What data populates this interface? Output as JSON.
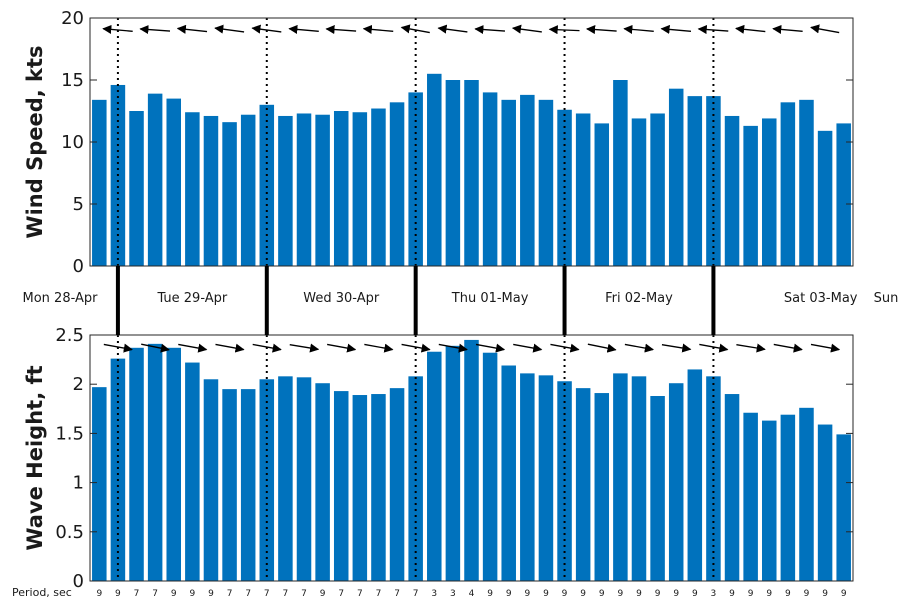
{
  "chart_data": [
    {
      "type": "bar",
      "ylabel": "Wind Speed, kts",
      "ylim": [
        0,
        20
      ],
      "yticks": [
        0,
        5,
        10,
        15,
        20
      ],
      "color": "#0072BD",
      "values": [
        13.4,
        14.6,
        12.5,
        13.9,
        13.5,
        12.4,
        12.1,
        11.6,
        12.2,
        13.0,
        12.1,
        12.3,
        12.2,
        12.5,
        12.4,
        12.7,
        13.2,
        14.0,
        15.5,
        15.0,
        15.0,
        14.0,
        13.4,
        13.8,
        13.4,
        12.6,
        12.3,
        11.5,
        15.0,
        11.9,
        12.3,
        14.3,
        13.7,
        13.7,
        12.1,
        11.3,
        11.9,
        13.2,
        13.4,
        10.9,
        11.5
      ],
      "direction_arrows": "wind direction arrows along top of panel"
    },
    {
      "type": "bar",
      "ylabel": "Wave Height, ft",
      "ylim": [
        0,
        2.5
      ],
      "yticks": [
        "0",
        "0.5",
        "1",
        "1.5",
        "2",
        "2.5"
      ],
      "color": "#0072BD",
      "values": [
        1.97,
        2.26,
        2.37,
        2.41,
        2.37,
        2.22,
        2.05,
        1.95,
        1.95,
        2.05,
        2.08,
        2.07,
        2.01,
        1.93,
        1.89,
        1.9,
        1.96,
        2.08,
        2.33,
        2.39,
        2.45,
        2.32,
        2.19,
        2.11,
        2.09,
        2.03,
        1.96,
        1.91,
        2.11,
        2.08,
        1.88,
        2.01,
        2.15,
        2.08,
        1.9,
        1.71,
        1.63,
        1.69,
        1.76,
        1.59,
        1.49
      ],
      "periods_label": "Period, sec",
      "periods": [
        "9",
        "9",
        "7",
        "7",
        "9",
        "9",
        "9",
        "7",
        "7",
        "7",
        "7",
        "7",
        "9",
        "7",
        "7",
        "7",
        "7",
        "7",
        "3",
        "3",
        "4",
        "9",
        "9",
        "9",
        "9",
        "9",
        "9",
        "9",
        "9",
        "9",
        "9",
        "9",
        "9",
        "3",
        "9",
        "9",
        "9",
        "9",
        "9",
        "9",
        "9"
      ]
    }
  ],
  "days": [
    "Mon 28-Apr",
    "Tue 29-Apr",
    "Wed 30-Apr",
    "Thu 01-May",
    "Fri 02-May",
    "Sat 03-May",
    "Sun"
  ],
  "day_boundaries": [
    1.5,
    9.5,
    17.5,
    25.5,
    33.5
  ],
  "wind_arrow_angles_deg": [
    160,
    170,
    170,
    172,
    170,
    168,
    172,
    165,
    160,
    165,
    168,
    170,
    170,
    172,
    168,
    170,
    165,
    160,
    158,
    165,
    170,
    172,
    168,
    165,
    170,
    175,
    172,
    172,
    172,
    170,
    168,
    170,
    172,
    172,
    170,
    168,
    168,
    170,
    165,
    160,
    158
  ],
  "wave_arrow_angles_deg": [
    20,
    20,
    22,
    22,
    20,
    20,
    20,
    20,
    18,
    20,
    20,
    18,
    20,
    20,
    20,
    20,
    20,
    20,
    20,
    20,
    20,
    20,
    20,
    20,
    20,
    20,
    22,
    22,
    22,
    20,
    20,
    18,
    18,
    20,
    20,
    18,
    18,
    20,
    20,
    20,
    20
  ]
}
